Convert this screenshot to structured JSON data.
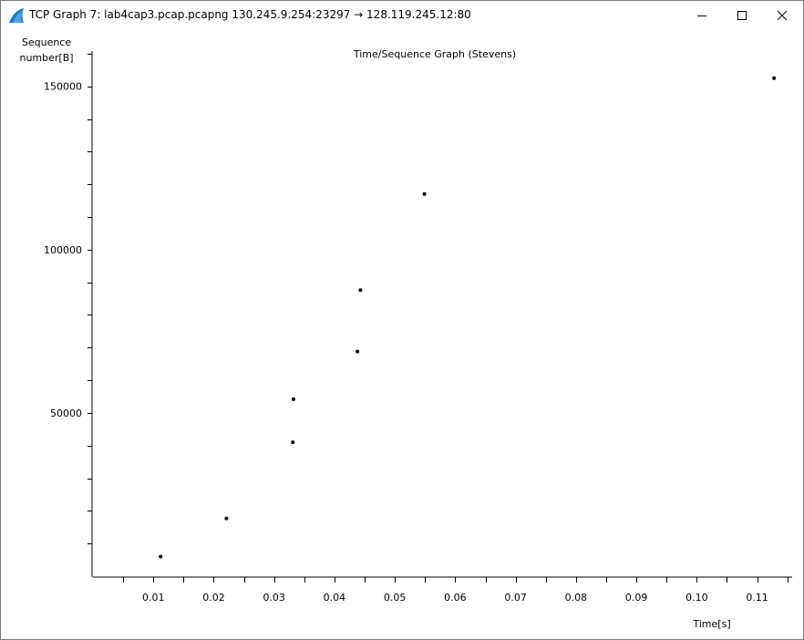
{
  "window": {
    "title": "TCP Graph 7: lab4cap3.pcap.pcapng 130.245.9.254:23297 → 128.119.245.12:80",
    "buttons": {
      "minimize": "minimize-icon",
      "maximize": "maximize-icon",
      "close": "close-icon"
    }
  },
  "chart_data": {
    "type": "scatter",
    "title": "Time/Sequence Graph (Stevens)",
    "xlabel": "Time[s]",
    "ylabel_line1": "Sequence",
    "ylabel_line2": "number[B]",
    "xlim": [
      0.0,
      0.1155
    ],
    "ylim": [
      0,
      165000
    ],
    "x_ticks": [
      0.01,
      0.02,
      0.03,
      0.04,
      0.05,
      0.06,
      0.07,
      0.08,
      0.09,
      0.1,
      0.11
    ],
    "x_tick_labels": [
      "0.01",
      "0.02",
      "0.03",
      "0.04",
      "0.05",
      "0.06",
      "0.07",
      "0.08",
      "0.09",
      "0.10",
      "0.11"
    ],
    "y_ticks": [
      50000,
      100000,
      150000
    ],
    "y_tick_labels": [
      "50000",
      "100000",
      "150000"
    ],
    "y_minor_step": 10000,
    "x_minor_step": 0.005,
    "grid": false,
    "points": [
      {
        "x": 0.0112,
        "y": 6000
      },
      {
        "x": 0.0221,
        "y": 17700
      },
      {
        "x": 0.0331,
        "y": 41000
      },
      {
        "x": 0.0332,
        "y": 54200
      },
      {
        "x": 0.0438,
        "y": 68800
      },
      {
        "x": 0.0443,
        "y": 87600
      },
      {
        "x": 0.0549,
        "y": 117000
      },
      {
        "x": 0.1128,
        "y": 152500
      }
    ],
    "color": "#000000"
  }
}
